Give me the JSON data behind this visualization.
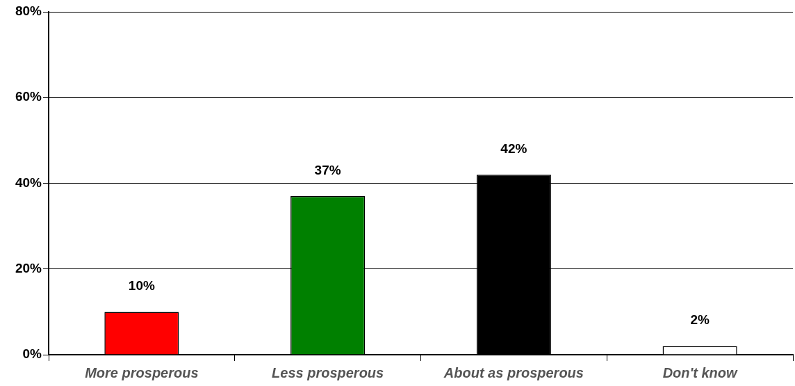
{
  "chart_data": {
    "type": "bar",
    "categories": [
      "More prosperous",
      "Less prosperous",
      "About as prosperous",
      "Don't know"
    ],
    "values": [
      10,
      37,
      42,
      2
    ],
    "colors": [
      "#ff0000",
      "#008000",
      "#000000",
      "#ffffff"
    ],
    "value_labels": [
      "10%",
      "37%",
      "42%",
      "2%"
    ],
    "ylim": [
      0,
      80
    ],
    "yticks": [
      {
        "value": 0,
        "label": "0%"
      },
      {
        "value": 20,
        "label": "20%"
      },
      {
        "value": 40,
        "label": "40%"
      },
      {
        "value": 60,
        "label": "60%"
      },
      {
        "value": 80,
        "label": "80%"
      }
    ],
    "grid": "y"
  }
}
